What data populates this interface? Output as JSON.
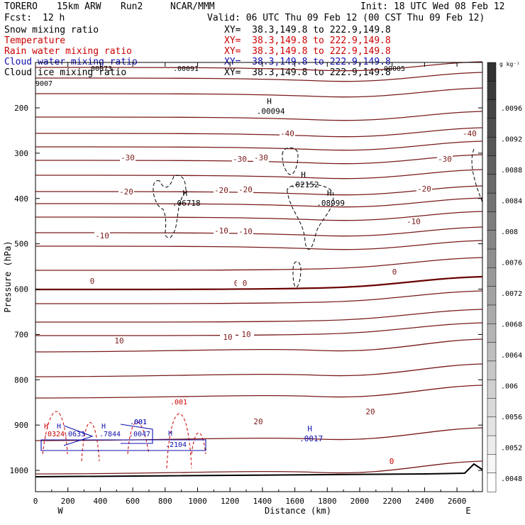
{
  "header": {
    "model": "TORERO",
    "resolution": "15km ARW",
    "run": "Run2",
    "org": "NCAR/MMM",
    "init": "Init: 18 UTC Wed 08 Feb 12",
    "fcst_label": "Fcst:",
    "fcst_value": "12 h",
    "valid": "Valid: 06 UTC Thu 09 Feb 12 (00 CST Thu 09 Feb 12)"
  },
  "legend": [
    {
      "label": "Snow mixing ratio",
      "xy": "XY=  38.3,149.8 to 222.9,149.8",
      "color": "#000000"
    },
    {
      "label": "Temperature",
      "xy": "XY=  38.3,149.8 to 222.9,149.8",
      "color": "#cc0000"
    },
    {
      "label": "Rain water mixing ratio",
      "xy": "XY=  38.3,149.8 to 222.9,149.8",
      "color": "#cc0000"
    },
    {
      "label": "Cloud water mixing ratio",
      "xy": "XY=  38.3,149.8 to 222.9,149.8",
      "color": "#1010b0"
    },
    {
      "label": "Cloud ice mixing ratio",
      "xy": "XY=  38.3,149.8 to 222.9,149.8",
      "color": "#000000"
    }
  ],
  "chart_data": {
    "type": "contour",
    "ylabel": "Pressure (hPa)",
    "xlabel": "Distance (km)",
    "x_ticks": [
      "0",
      "200",
      "400",
      "600",
      "800",
      "1000",
      "1200",
      "1400",
      "1600",
      "1800",
      "2000",
      "2200",
      "2400",
      "2600"
    ],
    "y_ticks": [
      "200",
      "300",
      "400",
      "500",
      "600",
      "700",
      "800",
      "900",
      "1000"
    ],
    "xlim": [
      0,
      2780
    ],
    "ylim": [
      1050,
      100
    ],
    "end_labels": {
      "left": "W",
      "right": "E"
    },
    "colorbar": {
      "units": "g kg⁻¹",
      "labels": [
        ".0096",
        ".0092",
        ".0088",
        ".0084",
        ".008",
        ".0076",
        ".0072",
        ".0068",
        ".0064",
        ".006",
        ".0056",
        ".0052",
        ".0048"
      ]
    },
    "temperature_labels": [
      "-40",
      "-40",
      "-30",
      "-30",
      "-30",
      "-30",
      "-20",
      "-20",
      "-20",
      "-20",
      "-10",
      "-10",
      "-10",
      "-10",
      "0",
      "0",
      "0",
      "0",
      "10",
      "10",
      "10",
      "20",
      "20",
      "0"
    ],
    "extrema": [
      {
        "mark": "H",
        "value": ".00094",
        "x_km": 1320,
        "p_hpa": 198
      },
      {
        "mark": "H",
        "value": ".02152",
        "x_km": 1530,
        "p_hpa": 360
      },
      {
        "mark": "H",
        "value": ".06718",
        "x_km": 800,
        "p_hpa": 400
      },
      {
        "mark": "H",
        "value": ".08999",
        "x_km": 1690,
        "p_hpa": 400
      },
      {
        "mark": "H",
        "value": ".0017",
        "x_km": 1570,
        "p_hpa": 920
      }
    ],
    "top_labels": [
      ".00073",
      ".00091",
      ".00005",
      "9007"
    ],
    "cloud_labels": [
      ".0324",
      ".0633",
      ".7844",
      ".001",
      ".0047",
      ".2104"
    ],
    "rain_labels": [
      ".001"
    ],
    "cloud_water_labels": [
      ".001"
    ]
  }
}
